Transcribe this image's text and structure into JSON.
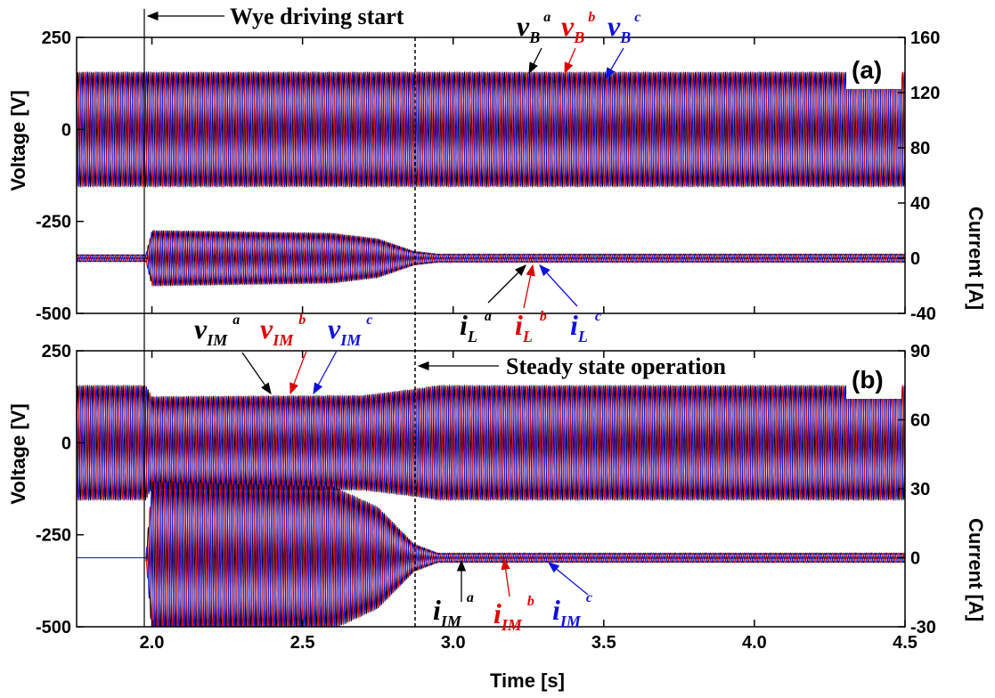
{
  "chart_data": [
    {
      "type": "line",
      "panel": "(a)",
      "xlabel": "Time [s]",
      "xlim": [
        1.75,
        4.5
      ],
      "xticks": [
        "2.0",
        "2.5",
        "3.0",
        "3.5",
        "4.0",
        "4.5"
      ],
      "ylabel_left": "Voltage [V]",
      "ylim_left": [
        -500,
        250
      ],
      "yticks_left": [
        "250",
        "0",
        "-250",
        "-500"
      ],
      "ylabel_right": "Current [A]",
      "ylim_right": [
        -40,
        160
      ],
      "yticks_right": [
        "160",
        "120",
        "80",
        "40",
        "0",
        "-40"
      ],
      "annotations": [
        "Wye driving start"
      ],
      "event_times": [
        1.98,
        2.87
      ],
      "series": [
        {
          "name": "vB a",
          "axis": "left",
          "color": "#000000",
          "envelope_x": [
            1.75,
            4.5
          ],
          "amplitude": [
            155,
            155
          ],
          "offset": 0
        },
        {
          "name": "vB b",
          "axis": "left",
          "color": "#e00000",
          "envelope_x": [
            1.75,
            4.5
          ],
          "amplitude": [
            155,
            155
          ],
          "offset": 0
        },
        {
          "name": "vB c",
          "axis": "left",
          "color": "#1010dd",
          "envelope_x": [
            1.75,
            4.5
          ],
          "amplitude": [
            155,
            155
          ],
          "offset": 0
        },
        {
          "name": "iL a",
          "axis": "right",
          "color": "#000000",
          "envelope_x": [
            1.75,
            1.98,
            2.0,
            2.6,
            2.75,
            2.87,
            2.95,
            4.5
          ],
          "amplitude": [
            2.5,
            2.5,
            20,
            18,
            14,
            5,
            3,
            3
          ],
          "offset": 0
        },
        {
          "name": "iL b",
          "axis": "right",
          "color": "#e00000",
          "envelope_x": [
            1.75,
            1.98,
            2.0,
            2.6,
            2.75,
            2.87,
            2.95,
            4.5
          ],
          "amplitude": [
            2.5,
            2.5,
            20,
            18,
            14,
            5,
            3,
            3
          ],
          "offset": 0
        },
        {
          "name": "iL c",
          "axis": "right",
          "color": "#1010dd",
          "envelope_x": [
            1.75,
            1.98,
            2.0,
            2.6,
            2.75,
            2.87,
            2.95,
            4.5
          ],
          "amplitude": [
            2.5,
            2.5,
            20,
            18,
            14,
            5,
            3,
            3
          ],
          "offset": 0
        }
      ]
    },
    {
      "type": "line",
      "panel": "(b)",
      "xlabel": "Time [s]",
      "xlim": [
        1.75,
        4.5
      ],
      "xticks": [
        "2.0",
        "2.5",
        "3.0",
        "3.5",
        "4.0",
        "4.5"
      ],
      "ylabel_left": "Voltage [V]",
      "ylim_left": [
        -500,
        250
      ],
      "yticks_left": [
        "250",
        "0",
        "-250",
        "-500"
      ],
      "ylabel_right": "Current [A]",
      "ylim_right": [
        -30,
        90
      ],
      "yticks_right": [
        "90",
        "60",
        "30",
        "0",
        "-30"
      ],
      "annotations": [
        "Steady state operation"
      ],
      "event_times": [
        1.98,
        2.87
      ],
      "series": [
        {
          "name": "vIM a",
          "axis": "left",
          "color": "#000000",
          "envelope_x": [
            1.75,
            1.98,
            2.0,
            2.7,
            2.87,
            2.95,
            4.5
          ],
          "amplitude": [
            155,
            155,
            125,
            128,
            145,
            155,
            155
          ],
          "offset": 0
        },
        {
          "name": "vIM b",
          "axis": "left",
          "color": "#e00000",
          "envelope_x": [
            1.75,
            1.98,
            2.0,
            2.7,
            2.87,
            2.95,
            4.5
          ],
          "amplitude": [
            155,
            155,
            125,
            128,
            145,
            155,
            155
          ],
          "offset": 0
        },
        {
          "name": "vIM c",
          "axis": "left",
          "color": "#1010dd",
          "envelope_x": [
            1.75,
            1.98,
            2.0,
            2.7,
            2.87,
            2.95,
            4.5
          ],
          "amplitude": [
            155,
            155,
            125,
            128,
            145,
            155,
            155
          ],
          "offset": 0
        },
        {
          "name": "iIM a",
          "axis": "right",
          "color": "#000000",
          "envelope_x": [
            1.75,
            1.98,
            2.0,
            2.6,
            2.75,
            2.87,
            2.95,
            4.5
          ],
          "amplitude": [
            0,
            0,
            33,
            31,
            22,
            6,
            2,
            2
          ],
          "offset": 0
        },
        {
          "name": "iIM b",
          "axis": "right",
          "color": "#e00000",
          "envelope_x": [
            1.75,
            1.98,
            2.0,
            2.6,
            2.75,
            2.87,
            2.95,
            4.5
          ],
          "amplitude": [
            0,
            0,
            33,
            31,
            22,
            6,
            2,
            2
          ],
          "offset": 0
        },
        {
          "name": "iIM c",
          "axis": "right",
          "color": "#1010dd",
          "envelope_x": [
            1.75,
            1.98,
            2.0,
            2.6,
            2.75,
            2.87,
            2.95,
            4.5
          ],
          "amplitude": [
            0,
            0,
            33,
            31,
            22,
            6,
            2,
            2
          ],
          "offset": 0
        }
      ]
    }
  ],
  "legend_a": {
    "v": "v",
    "B": "B",
    "a": "a",
    "b": "b",
    "c": "c",
    "i": "i",
    "L": "L"
  },
  "legend_b": {
    "v": "v",
    "IM": "IM",
    "a": "a",
    "b": "b",
    "c": "c",
    "i": "i"
  },
  "colors": {
    "phase_a": "#000000",
    "phase_b": "#e00000",
    "phase_c": "#1010dd"
  }
}
